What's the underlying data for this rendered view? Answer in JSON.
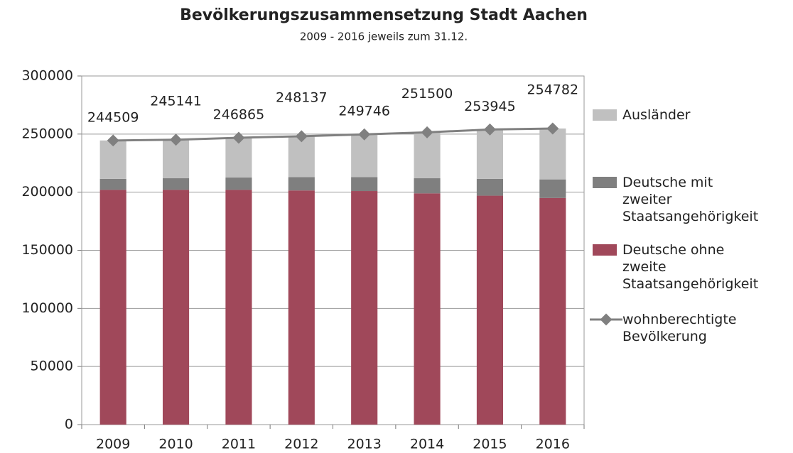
{
  "chart_data": {
    "type": "stacked_bar_line",
    "title": "Bevölkerungszusammensetzung Stadt Aachen",
    "subtitle": "2009 - 2016 jeweils zum 31.12.",
    "categories": [
      "2009",
      "2010",
      "2011",
      "2012",
      "2013",
      "2014",
      "2015",
      "2016"
    ],
    "series": [
      {
        "name": "Deutsche ohne zweite Staatsangehörigkeit",
        "color": "#a0485a",
        "values": [
          202000,
          202000,
          202000,
          201500,
          201000,
          199000,
          197000,
          195000
        ]
      },
      {
        "name": "Deutsche mit zweiter Staatsangehörigkeit",
        "color": "#7f7f7f",
        "values": [
          9500,
          10000,
          10600,
          11500,
          12000,
          13000,
          14500,
          16000
        ]
      },
      {
        "name": "Ausländer",
        "color": "#c0c0c0",
        "values": [
          33000,
          33100,
          34300,
          35100,
          36700,
          39500,
          42400,
          43800
        ]
      },
      {
        "name": "wohnberechtigte Bevölkerung",
        "color": "#808080",
        "type": "line",
        "values": [
          244509,
          245141,
          246865,
          248137,
          249746,
          251500,
          253945,
          254782
        ]
      }
    ],
    "ylim": [
      0,
      300000
    ],
    "yticks": [
      0,
      50000,
      100000,
      150000,
      200000,
      250000,
      300000
    ],
    "grid": true
  }
}
